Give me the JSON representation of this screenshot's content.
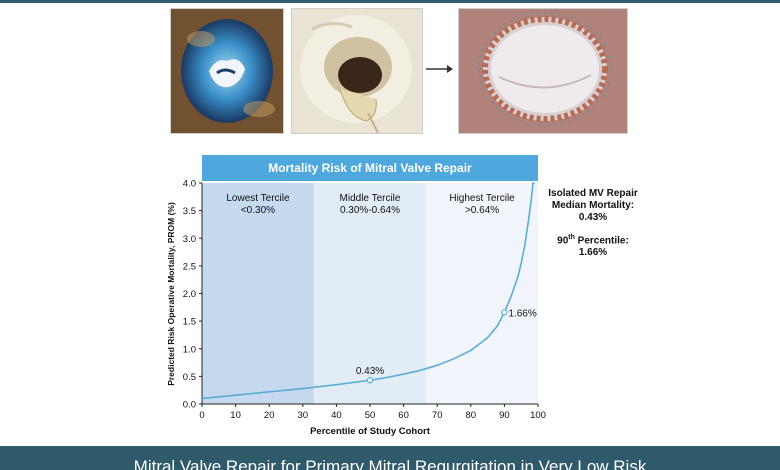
{
  "figure": {
    "side_notes": {
      "line1": "Isolated MV Repair",
      "line2": "Median Mortality:",
      "median_value": "0.43%",
      "p90_label_main": "90",
      "p90_label_sup": "th",
      "p90_label_rest": " Percentile:",
      "p90_value": "1.66%"
    },
    "bottom_caption": "Mitral Valve Repair for Primary Mitral Regurgitation in Very Low Risk"
  },
  "chart_data": {
    "type": "line",
    "title": "Mortality Risk of Mitral Valve Repair",
    "xlabel": "Percentile of Study Cohort",
    "ylabel": "Predicted Risk Operative Mortality, PROM (%)",
    "xlim": [
      0,
      100
    ],
    "ylim": [
      0,
      4.0
    ],
    "x_ticks": [
      0,
      10,
      20,
      30,
      40,
      50,
      60,
      70,
      80,
      90,
      100
    ],
    "y_ticks": [
      "0.0",
      "0.5",
      "1.0",
      "1.5",
      "2.0",
      "2.5",
      "3.0",
      "3.5",
      "4.0"
    ],
    "grid": false,
    "regions": [
      {
        "name": "Lowest Tercile",
        "range_label": "<0.30%",
        "x_start": 0,
        "x_end": 33.3,
        "color": "#c5d9ef"
      },
      {
        "name": "Middle Tercile",
        "range_label": "0.30%-0.64%",
        "x_start": 33.3,
        "x_end": 66.7,
        "color": "#e2ecf7"
      },
      {
        "name": "Highest Tercile",
        "range_label": ">0.64%",
        "x_start": 66.7,
        "x_end": 100,
        "color": "#f1f5fb"
      }
    ],
    "series": [
      {
        "color": "#5aaed4",
        "x": [
          0,
          5,
          10,
          20,
          30,
          40,
          50,
          55,
          60,
          65,
          70,
          75,
          80,
          85,
          88,
          90,
          92,
          94,
          95,
          96,
          97,
          98,
          98.5,
          99
        ],
        "y": [
          0.1,
          0.13,
          0.16,
          0.22,
          0.28,
          0.35,
          0.43,
          0.48,
          0.54,
          0.61,
          0.7,
          0.82,
          0.97,
          1.2,
          1.42,
          1.66,
          1.95,
          2.3,
          2.55,
          2.85,
          3.25,
          3.7,
          4.0,
          4.0
        ]
      }
    ],
    "annotations": [
      {
        "x": 50,
        "y": 0.43,
        "label": "0.43%"
      },
      {
        "x": 90,
        "y": 1.66,
        "label": "1.66%"
      }
    ]
  }
}
